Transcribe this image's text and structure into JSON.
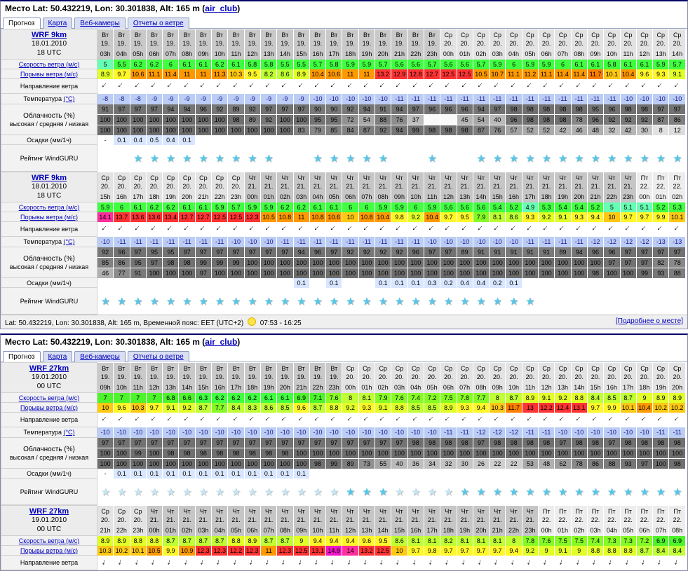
{
  "header": {
    "location": "Место Lat: 50.432219, Lon: 30.301838, Alt: 165 m",
    "paren_open": "(",
    "link_label": "air_club",
    "paren_close": ")"
  },
  "tabs": [
    {
      "id": "forecast",
      "label": "Прогноз",
      "active": true
    },
    {
      "id": "map",
      "label": "Карта",
      "active": false
    },
    {
      "id": "webcams",
      "label": "Веб-камеры",
      "active": false
    },
    {
      "id": "wind-reports",
      "label": "Отчеты о ветре",
      "active": false
    }
  ],
  "footer": {
    "location_text": "Lat: 50.432219, Lon: 30.301838, Alt: 165 m, Временной пояс: EET (UTC+2)",
    "daylight": "07:53 - 16:25",
    "link_label": "[Подробнее о месте]",
    "sun_icon": "sun-icon"
  },
  "row_labels": {
    "speed": "Скорость ветра (м/с)",
    "gusts": "Порывы ветра (м/с)",
    "direction": "Направление ветра",
    "temp": "Температура ",
    "temp_unit": "(°C)",
    "clouds1": "Облачность (%)",
    "clouds2": "высокая / средняя / низкая",
    "precip": "Осадки (мм/1ч)",
    "rating": "Рейтинг WindGURU"
  },
  "colors": {
    "wind_scale": [
      [
        5.15,
        "#66FFB3"
      ],
      [
        6.45,
        "#40FF40"
      ],
      [
        7.15,
        "#4DF32B"
      ],
      [
        7.95,
        "#86FA25"
      ],
      [
        8.75,
        "#BFFF33"
      ],
      [
        9.25,
        "#E2FF28"
      ],
      [
        9.95,
        "#FFF728"
      ],
      [
        10.35,
        "#FFC913"
      ],
      [
        11.55,
        "#FF9900"
      ],
      [
        12.15,
        "#FF7E00"
      ],
      [
        13.85,
        "#FF3333"
      ],
      [
        14.45,
        "#FF2E9E"
      ],
      [
        999,
        "#F014C8"
      ]
    ],
    "temp_bg": "#BCCDF5",
    "temp_text": "#14148C",
    "precip_bg": "#D9E6FF",
    "day_shades": {
      "Вт": "#C9C9C9",
      "Ср": "#E3E3E3",
      "Чт": "#C6C6C6",
      "Пт": "#EDEDED"
    },
    "star_bright": "#56C7E8",
    "star_dim": "#C4E5F1",
    "link": "#0000BB"
  },
  "sections": [
    {
      "name": "forecast-section-1",
      "tables": [
        0,
        1
      ],
      "has_footer": true
    },
    {
      "name": "forecast-section-2",
      "tables": [
        2,
        3
      ],
      "has_footer": false
    }
  ],
  "tables": [
    {
      "model": "WRF 9km",
      "date": "18.01.2010",
      "utc": "18 UTC",
      "arrow_rot": 135,
      "days": [
        {
          "name": "Вт",
          "num": "19.",
          "span": 21
        },
        {
          "name": "Ср",
          "num": "20.",
          "span": 15
        }
      ],
      "hours": [
        "03h",
        "04h",
        "05h",
        "06h",
        "07h",
        "08h",
        "09h",
        "10h",
        "11h",
        "12h",
        "13h",
        "14h",
        "15h",
        "16h",
        "17h",
        "18h",
        "19h",
        "20h",
        "21h",
        "22h",
        "23h",
        "00h",
        "01h",
        "02h",
        "03h",
        "04h",
        "05h",
        "06h",
        "07h",
        "08h",
        "09h",
        "10h",
        "11h",
        "12h",
        "13h",
        "14h"
      ],
      "speed": [
        5,
        5.5,
        6.2,
        6.2,
        6,
        6.1,
        6.1,
        6.2,
        6.1,
        5.8,
        5.8,
        5.5,
        5.5,
        5.7,
        5.8,
        5.9,
        5.9,
        5.7,
        5.6,
        5.6,
        5.7,
        5.6,
        5.6,
        5.7,
        5.9,
        6,
        5.9,
        5.9,
        6,
        6.1,
        6.1,
        5.8,
        6.1,
        6.1,
        5.9,
        5.7
      ],
      "gusts": [
        8.9,
        9.7,
        10.6,
        11.1,
        11.4,
        11,
        11,
        11.3,
        10.3,
        9.5,
        8.2,
        8.6,
        8.9,
        10.4,
        10.6,
        11,
        11,
        13.2,
        12.9,
        12.8,
        12.7,
        12.5,
        12.5,
        10.5,
        10.7,
        11.1,
        11.2,
        11.1,
        11.4,
        11.4,
        11.7,
        10.1,
        10.4,
        9.6,
        9.3,
        9.1
      ],
      "temp": [
        -8,
        -8,
        -8,
        -9,
        -9,
        -9,
        -9,
        -9,
        -9,
        -9,
        -9,
        -9,
        -9,
        -10,
        -10,
        -10,
        -10,
        -10,
        -11,
        -11,
        -11,
        -11,
        -11,
        -11,
        -11,
        -11,
        -11,
        -11,
        -11,
        -11,
        -11,
        -11,
        -10,
        -10,
        -10,
        -10
      ],
      "cloud_high": [
        91,
        97,
        97,
        97,
        94,
        94,
        96,
        92,
        89,
        92,
        97,
        97,
        97,
        90,
        90,
        92,
        94,
        91,
        94,
        97,
        96,
        96,
        96,
        94,
        97,
        98,
        98,
        98,
        98,
        98,
        95,
        96,
        98,
        98,
        97,
        97
      ],
      "cloud_mid": [
        100,
        100,
        100,
        100,
        100,
        100,
        100,
        100,
        98,
        89,
        92,
        100,
        100,
        95,
        95,
        72,
        54,
        88,
        76,
        37,
        "",
        "",
        45,
        54,
        40,
        96,
        98,
        98,
        98,
        78,
        96,
        92,
        92,
        92,
        87,
        86
      ],
      "cloud_low": [
        100,
        100,
        100,
        100,
        100,
        100,
        100,
        100,
        100,
        100,
        100,
        100,
        83,
        79,
        85,
        84,
        87,
        92,
        94,
        99,
        98,
        98,
        98,
        87,
        76,
        57,
        52,
        52,
        42,
        46,
        48,
        32,
        42,
        30,
        8,
        12
      ],
      "precip": [
        "-",
        "0.1",
        "0.4",
        "0.5",
        "0.4",
        "0.1",
        "",
        "",
        "",
        "",
        "",
        "",
        "",
        "",
        "",
        "",
        "",
        "",
        "",
        "",
        "",
        "",
        "",
        "",
        "",
        "",
        "",
        "",
        "",
        "",
        "",
        "",
        "",
        "",
        "",
        ""
      ],
      "stars": [
        0,
        0,
        2,
        2,
        2,
        2,
        2,
        2,
        2,
        2,
        2,
        0,
        0,
        2,
        2,
        2,
        2,
        2,
        0,
        0,
        2,
        0,
        0,
        2,
        2,
        2,
        2,
        2,
        2,
        2,
        2,
        2,
        2,
        2,
        2,
        2
      ]
    },
    {
      "model": "WRF 9km",
      "date": "18.01.2010",
      "utc": "18 UTC",
      "arrow_rot": 135,
      "days": [
        {
          "name": "Ср",
          "num": "20.",
          "span": 9
        },
        {
          "name": "Чт",
          "num": "21.",
          "span": 24
        },
        {
          "name": "Пт",
          "num": "22.",
          "span": 3
        }
      ],
      "hours": [
        "15h",
        "16h",
        "17h",
        "18h",
        "19h",
        "20h",
        "21h",
        "22h",
        "23h",
        "00h",
        "01h",
        "02h",
        "03h",
        "04h",
        "05h",
        "06h",
        "07h",
        "08h",
        "09h",
        "10h",
        "11h",
        "12h",
        "13h",
        "14h",
        "15h",
        "16h",
        "17h",
        "18h",
        "19h",
        "20h",
        "21h",
        "22h",
        "23h",
        "00h",
        "01h",
        "02h"
      ],
      "speed": [
        5.9,
        6,
        6.1,
        6.2,
        6.2,
        6.1,
        6.1,
        5.9,
        5.7,
        5.9,
        5.9,
        6.2,
        6.2,
        6.1,
        6.1,
        6,
        6,
        5.9,
        5.9,
        6,
        5.9,
        5.6,
        5.6,
        5.6,
        5.4,
        5.2,
        4.9,
        5.3,
        5.4,
        5.4,
        5.2,
        5,
        5.1,
        5.1,
        5.2,
        5.3
      ],
      "gusts": [
        14.1,
        13.7,
        13.6,
        13.6,
        13.4,
        12.7,
        12.7,
        12.5,
        12.5,
        12.3,
        10.5,
        10.8,
        11,
        10.8,
        10.6,
        10,
        10.8,
        10.4,
        9.8,
        9.2,
        10.4,
        9.7,
        9.5,
        7.9,
        8.1,
        8.6,
        9.3,
        9.2,
        9.1,
        9.3,
        9.4,
        10,
        9.7,
        9.7,
        9.9,
        10.1
      ],
      "temp": [
        -10,
        -11,
        -11,
        -11,
        -11,
        -11,
        -11,
        -11,
        -10,
        -10,
        -10,
        -11,
        -11,
        -11,
        -11,
        -11,
        -11,
        -11,
        -11,
        -11,
        -10,
        -10,
        -10,
        -10,
        -10,
        -10,
        -11,
        -11,
        -11,
        -11,
        -12,
        -12,
        -12,
        -12,
        -13,
        -13
      ],
      "cloud_high": [
        92,
        96,
        97,
        95,
        95,
        97,
        97,
        97,
        97,
        97,
        97,
        97,
        94,
        96,
        97,
        92,
        92,
        92,
        92,
        96,
        97,
        97,
        89,
        91,
        91,
        91,
        91,
        91,
        89,
        94,
        96,
        96,
        97,
        97,
        97,
        97
      ],
      "cloud_mid": [
        85,
        86,
        95,
        97,
        98,
        98,
        99,
        99,
        99,
        100,
        100,
        100,
        100,
        100,
        100,
        100,
        100,
        100,
        100,
        100,
        100,
        100,
        100,
        100,
        100,
        100,
        100,
        100,
        100,
        100,
        100,
        97,
        97,
        97,
        82,
        78
      ],
      "cloud_low": [
        46,
        77,
        91,
        100,
        100,
        100,
        97,
        100,
        100,
        100,
        100,
        100,
        100,
        100,
        100,
        100,
        100,
        100,
        100,
        100,
        100,
        100,
        100,
        100,
        100,
        100,
        100,
        100,
        100,
        100,
        98,
        100,
        100,
        99,
        93,
        88
      ],
      "precip": [
        "",
        "",
        "",
        "",
        "",
        "",
        "",
        "",
        "",
        "",
        "",
        "",
        "0.1",
        "",
        "0.1",
        "",
        "",
        "0.1",
        "0.1",
        "0.1",
        "0.3",
        "0.2",
        "0.4",
        "0.4",
        "0.2",
        "0.1",
        "",
        "",
        "",
        "",
        "",
        "",
        "",
        "",
        "",
        ""
      ],
      "stars": [
        2,
        2,
        2,
        2,
        2,
        2,
        2,
        2,
        2,
        2,
        2,
        2,
        2,
        2,
        2,
        2,
        2,
        2,
        2,
        2,
        2,
        2,
        2,
        2,
        2,
        2,
        2,
        0,
        0,
        0,
        0,
        0,
        0,
        0,
        0,
        0
      ]
    },
    {
      "model": "WRF 27km",
      "date": "19.01.2010",
      "utc": "00 UTC",
      "arrow_rot": 135,
      "days": [
        {
          "name": "Вт",
          "num": "19.",
          "span": 15
        },
        {
          "name": "Ср",
          "num": "20.",
          "span": 21
        }
      ],
      "hours": [
        "09h",
        "10h",
        "11h",
        "12h",
        "13h",
        "14h",
        "15h",
        "16h",
        "17h",
        "18h",
        "19h",
        "20h",
        "21h",
        "22h",
        "23h",
        "00h",
        "01h",
        "02h",
        "03h",
        "04h",
        "05h",
        "06h",
        "07h",
        "08h",
        "09h",
        "10h",
        "11h",
        "12h",
        "13h",
        "14h",
        "15h",
        "16h",
        "17h",
        "18h",
        "19h",
        "20h"
      ],
      "speed": [
        7,
        7,
        7,
        7,
        6.8,
        6.6,
        6.3,
        6.2,
        6.2,
        6.2,
        6.1,
        6.1,
        6.9,
        7.1,
        7.6,
        8,
        8.1,
        7.9,
        7.6,
        7.4,
        7.2,
        7.5,
        7.8,
        7.7,
        8,
        8.7,
        8.9,
        9.1,
        9.2,
        8.8,
        8.4,
        8.5,
        8.7,
        9,
        8.9,
        8.9
      ],
      "gusts": [
        10,
        9.6,
        10.3,
        9.7,
        9.1,
        9.2,
        8.7,
        7.7,
        8.4,
        8.3,
        8.6,
        8.5,
        9.6,
        8.7,
        8.8,
        9.2,
        9.3,
        9.1,
        8.8,
        8.5,
        8.5,
        8.9,
        9.3,
        9.4,
        10.3,
        11.7,
        13,
        12.2,
        12.4,
        13.1,
        9.7,
        9.9,
        10.1,
        10.4,
        10.2,
        10.2
      ],
      "temp": [
        -10,
        -10,
        -10,
        -10,
        -10,
        -10,
        -10,
        -10,
        -10,
        -10,
        -10,
        -10,
        -10,
        -10,
        -10,
        -10,
        -10,
        -10,
        -10,
        -10,
        -10,
        -11,
        -11,
        -12,
        -12,
        -12,
        -11,
        -11,
        -10,
        -10,
        -10,
        -10,
        -10,
        -10,
        -11,
        -11
      ],
      "cloud_high": [
        97,
        97,
        97,
        97,
        97,
        97,
        97,
        97,
        97,
        97,
        97,
        97,
        97,
        97,
        97,
        97,
        97,
        97,
        97,
        98,
        98,
        98,
        98,
        97,
        98,
        98,
        98,
        98,
        97,
        98,
        98,
        97,
        98,
        98,
        98,
        98
      ],
      "cloud_mid": [
        100,
        100,
        99,
        100,
        98,
        98,
        98,
        98,
        98,
        98,
        98,
        98,
        100,
        100,
        100,
        100,
        100,
        100,
        100,
        100,
        100,
        100,
        100,
        100,
        100,
        100,
        100,
        100,
        100,
        100,
        100,
        100,
        100,
        100,
        100,
        100
      ],
      "cloud_low": [
        100,
        100,
        100,
        100,
        100,
        100,
        100,
        100,
        100,
        100,
        100,
        100,
        100,
        98,
        99,
        89,
        73,
        55,
        40,
        36,
        34,
        32,
        30,
        26,
        22,
        22,
        53,
        48,
        62,
        78,
        86,
        88,
        93,
        97,
        100,
        98
      ],
      "precip": [
        "-",
        "0.1",
        "0.1",
        "0.1",
        "0.1",
        "0.1",
        "0.1",
        "0.1",
        "0.1",
        "0.1",
        "0.1",
        "0.1",
        "0.1",
        "",
        "",
        "",
        "",
        "",
        "",
        "",
        "",
        "",
        "",
        "",
        "",
        "",
        "",
        "",
        "",
        "",
        "",
        "",
        "",
        "",
        "",
        ""
      ],
      "stars": [
        1,
        1,
        1,
        1,
        1,
        1,
        1,
        1,
        1,
        1,
        1,
        1,
        1,
        1,
        1,
        2,
        2,
        2,
        1,
        1,
        1,
        1,
        2,
        2,
        2,
        2,
        2,
        2,
        2,
        2,
        2,
        2,
        2,
        2,
        2,
        2
      ]
    },
    {
      "model": "WRF 27km",
      "date": "19.01.2010",
      "utc": "00 UTC",
      "arrow_rot": 105,
      "days": [
        {
          "name": "Ср",
          "num": "20.",
          "span": 3
        },
        {
          "name": "Чт",
          "num": "21.",
          "span": 24
        },
        {
          "name": "Пт",
          "num": "22.",
          "span": 9
        }
      ],
      "hours": [
        "21h",
        "22h",
        "23h",
        "00h",
        "01h",
        "02h",
        "03h",
        "04h",
        "05h",
        "06h",
        "07h",
        "08h",
        "09h",
        "10h",
        "11h",
        "12h",
        "13h",
        "14h",
        "15h",
        "16h",
        "17h",
        "18h",
        "19h",
        "20h",
        "21h",
        "22h",
        "23h",
        "00h",
        "01h",
        "02h",
        "03h",
        "04h",
        "05h",
        "06h",
        "07h",
        "08h"
      ],
      "speed": [
        8.9,
        8.9,
        8.8,
        8.8,
        8.7,
        8.7,
        8.7,
        8.7,
        8.8,
        8.9,
        8.7,
        8.7,
        9,
        9.4,
        9.4,
        9.4,
        9.6,
        9.5,
        8.6,
        8.1,
        8.1,
        8.2,
        8.1,
        8.1,
        8.1,
        8,
        7.8,
        7.6,
        7.5,
        7.5,
        7.4,
        7.3,
        7.3,
        7.2,
        6.9,
        6.9
      ],
      "gusts": [
        10.3,
        10.2,
        10.1,
        10.5,
        9.9,
        10.9,
        12.3,
        12.3,
        12.2,
        12.3,
        11,
        12.3,
        12.5,
        13.1,
        14.9,
        14,
        13.2,
        12.5,
        10,
        9.7,
        9.8,
        9.7,
        9.7,
        9.7,
        9.7,
        9.4,
        9.2,
        9,
        9.1,
        9,
        8.8,
        8.8,
        8.8,
        8.7,
        8.4,
        8.4
      ]
    }
  ]
}
